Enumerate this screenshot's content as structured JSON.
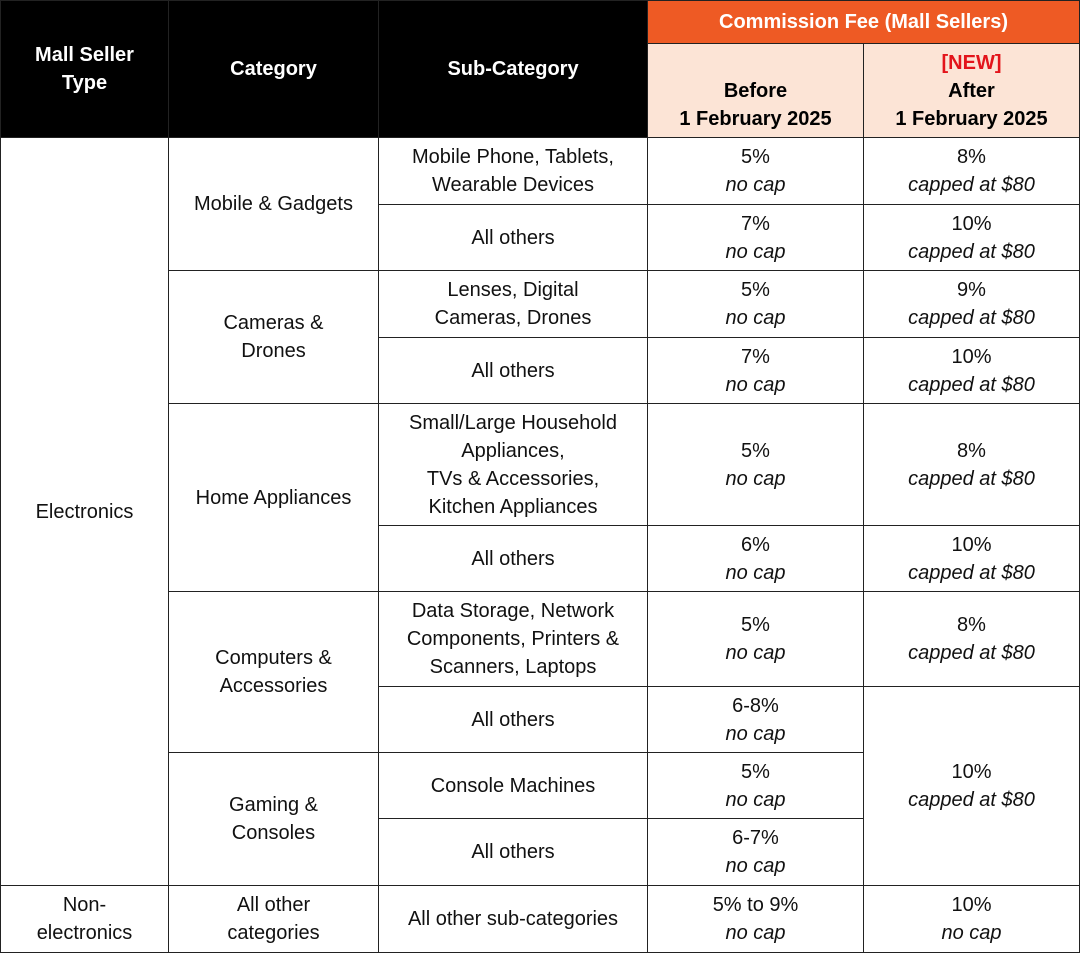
{
  "table": {
    "header": {
      "seller_type": [
        "Mall Seller",
        "Type"
      ],
      "category": "Category",
      "sub_category": "Sub-Category",
      "commission": "Commission Fee (Mall Sellers)",
      "before": [
        "Before",
        "1 February 2025"
      ],
      "new_tag": "[NEW]",
      "after": [
        "After",
        "1 February 2025"
      ]
    },
    "electronics": "Electronics",
    "categories": [
      {
        "name": [
          "Mobile & Gadgets"
        ],
        "subs": [
          {
            "name": [
              "Mobile Phone, Tablets,",
              "Wearable Devices"
            ],
            "before": [
              "5%",
              "no cap"
            ],
            "after": [
              "8%",
              "capped at $80"
            ]
          },
          {
            "name": [
              "All others"
            ],
            "before": [
              "7%",
              "no cap"
            ],
            "after": [
              "10%",
              "capped at $80"
            ]
          }
        ]
      },
      {
        "name": [
          "Cameras &",
          "Drones"
        ],
        "subs": [
          {
            "name": [
              "Lenses, Digital",
              "Cameras, Drones"
            ],
            "before": [
              "5%",
              "no cap"
            ],
            "after": [
              "9%",
              "capped at $80"
            ]
          },
          {
            "name": [
              "All others"
            ],
            "before": [
              "7%",
              "no cap"
            ],
            "after": [
              "10%",
              "capped at $80"
            ]
          }
        ]
      },
      {
        "name": [
          "Home Appliances"
        ],
        "subs": [
          {
            "name": [
              "Small/Large Household",
              "Appliances,",
              "TVs & Accessories,",
              "Kitchen Appliances"
            ],
            "before": [
              "5%",
              "no cap"
            ],
            "after": [
              "8%",
              "capped at $80"
            ]
          },
          {
            "name": [
              "All others"
            ],
            "before": [
              "6%",
              "no cap"
            ],
            "after": [
              "10%",
              "capped at $80"
            ]
          }
        ]
      },
      {
        "name": [
          "Computers &",
          "Accessories"
        ],
        "subs": [
          {
            "name": [
              "Data Storage, Network",
              "Components, Printers &",
              "Scanners, Laptops"
            ],
            "before": [
              "5%",
              "no cap"
            ],
            "after": [
              "8%",
              "capped at $80"
            ]
          },
          {
            "name": [
              "All others"
            ],
            "before": [
              "6-8%",
              "no cap"
            ]
          }
        ]
      },
      {
        "name": [
          "Gaming &",
          "Consoles"
        ],
        "subs": [
          {
            "name": [
              "Console Machines"
            ],
            "before": [
              "5%",
              "no cap"
            ]
          },
          {
            "name": [
              "All others"
            ],
            "before": [
              "6-7%",
              "no cap"
            ]
          }
        ]
      }
    ],
    "shared_after": [
      "10%",
      "capped at $80"
    ],
    "non_electronics": {
      "seller_type": [
        "Non-",
        "electronics"
      ],
      "category": [
        "All other",
        "categories"
      ],
      "sub_category": [
        "All other sub-categories"
      ],
      "before": [
        "5% to 9%",
        "no cap"
      ],
      "after": [
        "10%",
        "no cap"
      ]
    }
  }
}
